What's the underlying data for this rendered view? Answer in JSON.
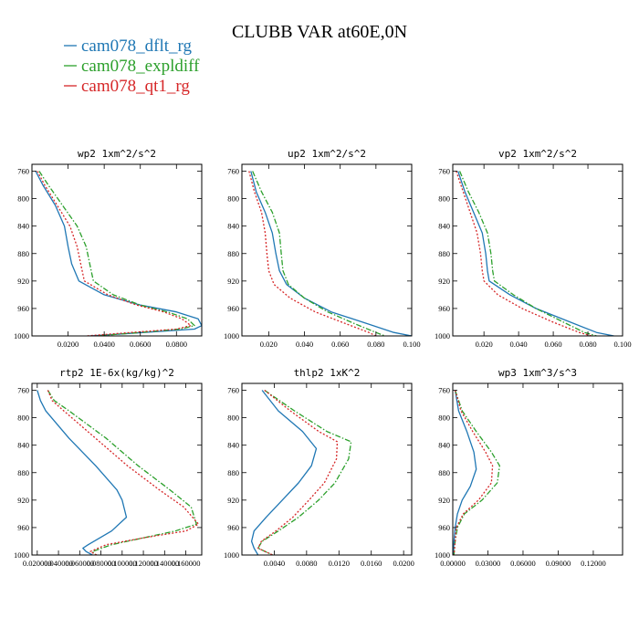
{
  "chart_data": {
    "type": "line",
    "title": "CLUBB VAR at60E,0N",
    "legend_position": "top-left",
    "series_meta": [
      {
        "name": "cam078_dflt_rg",
        "color": "#1f77b4",
        "dash": "solid"
      },
      {
        "name": "cam078_expldiff",
        "color": "#2ca02c",
        "dash": "dashdot"
      },
      {
        "name": "cam078_qt1_rg",
        "color": "#d62728",
        "dash": "dotted"
      }
    ],
    "panels": [
      {
        "title": "wp2   1xm^2/s^2",
        "xlim": [
          0,
          0.094
        ],
        "ylim": [
          1000,
          750
        ],
        "xticks": [
          0.02,
          0.04,
          0.06,
          0.08
        ],
        "xtick_labels": [
          "0.0200",
          "0.0400",
          "0.0600",
          "0.0800"
        ],
        "yticks": [
          760,
          800,
          840,
          880,
          920,
          960,
          1000
        ],
        "ytick_labels": [
          "760",
          "800",
          "840",
          "880",
          "920",
          "960",
          "1000"
        ],
        "series": [
          {
            "name": "cam078_dflt_rg",
            "x": [
              0.002,
              0.006,
              0.013,
              0.018,
              0.02,
              0.022,
              0.026,
              0.04,
              0.06,
              0.08,
              0.092,
              0.094,
              0.09,
              0.062,
              0.032
            ],
            "y": [
              760,
              780,
              810,
              840,
              870,
              895,
              920,
              940,
              955,
              965,
              975,
              985,
              990,
              995,
              1000
            ]
          },
          {
            "name": "cam078_expldiff",
            "x": [
              0.004,
              0.009,
              0.017,
              0.025,
              0.03,
              0.032,
              0.034,
              0.045,
              0.06,
              0.075,
              0.086,
              0.09,
              0.082,
              0.06,
              0.036
            ],
            "y": [
              760,
              780,
              810,
              840,
              870,
              895,
              920,
              940,
              955,
              965,
              975,
              985,
              990,
              995,
              1000
            ]
          },
          {
            "name": "cam078_qt1_rg",
            "x": [
              0.003,
              0.007,
              0.014,
              0.021,
              0.025,
              0.027,
              0.029,
              0.042,
              0.058,
              0.073,
              0.083,
              0.088,
              0.08,
              0.055,
              0.03
            ],
            "y": [
              760,
              780,
              810,
              840,
              870,
              895,
              920,
              940,
              955,
              965,
              975,
              985,
              990,
              995,
              1000
            ]
          }
        ]
      },
      {
        "title": "up2   1xm^2/s^2",
        "xlim": [
          0.005,
          0.1
        ],
        "ylim": [
          1000,
          750
        ],
        "xticks": [
          0.02,
          0.04,
          0.06,
          0.08,
          0.1
        ],
        "xtick_labels": [
          "0.020",
          "0.040",
          "0.060",
          "0.080",
          "0.100"
        ],
        "yticks": [
          760,
          800,
          840,
          880,
          920,
          960,
          1000
        ],
        "ytick_labels": [
          "760",
          "800",
          "840",
          "880",
          "920",
          "960",
          "1000"
        ],
        "series": [
          {
            "name": "cam078_dflt_rg",
            "x": [
              0.01,
              0.013,
              0.018,
              0.022,
              0.024,
              0.026,
              0.03,
              0.04,
              0.055,
              0.075,
              0.09,
              0.1
            ],
            "y": [
              760,
              790,
              820,
              850,
              880,
              905,
              925,
              945,
              965,
              982,
              995,
              1000
            ]
          },
          {
            "name": "cam078_expldiff",
            "x": [
              0.011,
              0.016,
              0.022,
              0.026,
              0.027,
              0.028,
              0.031,
              0.04,
              0.053,
              0.068,
              0.08,
              0.085
            ],
            "y": [
              760,
              790,
              820,
              850,
              880,
              905,
              925,
              945,
              965,
              982,
              995,
              1000
            ]
          },
          {
            "name": "cam078_qt1_rg",
            "x": [
              0.009,
              0.012,
              0.016,
              0.018,
              0.019,
              0.02,
              0.023,
              0.032,
              0.046,
              0.063,
              0.076,
              0.08
            ],
            "y": [
              760,
              790,
              820,
              850,
              880,
              905,
              925,
              945,
              965,
              982,
              995,
              1000
            ]
          }
        ]
      },
      {
        "title": "vp2   1xm^2/s^2",
        "xlim": [
          0.002,
          0.1
        ],
        "ylim": [
          1000,
          750
        ],
        "xticks": [
          0.02,
          0.04,
          0.06,
          0.08,
          0.1
        ],
        "xtick_labels": [
          "0.020",
          "0.040",
          "0.060",
          "0.080",
          "0.100"
        ],
        "yticks": [
          760,
          800,
          840,
          880,
          920,
          960,
          1000
        ],
        "ytick_labels": [
          "760",
          "800",
          "840",
          "880",
          "920",
          "960",
          "1000"
        ],
        "series": [
          {
            "name": "cam078_dflt_rg",
            "x": [
              0.005,
              0.009,
              0.014,
              0.019,
              0.021,
              0.022,
              0.023,
              0.035,
              0.05,
              0.07,
              0.085,
              0.095
            ],
            "y": [
              760,
              790,
              820,
              850,
              880,
              905,
              920,
              940,
              960,
              980,
              995,
              1000
            ]
          },
          {
            "name": "cam078_expldiff",
            "x": [
              0.006,
              0.011,
              0.017,
              0.022,
              0.024,
              0.025,
              0.026,
              0.037,
              0.05,
              0.066,
              0.078,
              0.085
            ],
            "y": [
              760,
              790,
              820,
              850,
              880,
              905,
              920,
              940,
              960,
              980,
              995,
              1000
            ]
          },
          {
            "name": "cam078_qt1_rg",
            "x": [
              0.004,
              0.008,
              0.012,
              0.016,
              0.018,
              0.019,
              0.02,
              0.028,
              0.042,
              0.06,
              0.075,
              0.082
            ],
            "y": [
              760,
              790,
              820,
              850,
              880,
              905,
              920,
              940,
              960,
              980,
              995,
              1000
            ]
          }
        ]
      },
      {
        "title": "rtp2   1E-6x(kg/kg)^2",
        "xlim": [
          0.015,
          0.175
        ],
        "ylim": [
          1000,
          750
        ],
        "xticks": [
          0.02,
          0.04,
          0.06,
          0.08,
          0.1,
          0.12,
          0.14,
          0.16
        ],
        "xtick_labels": [
          "0.020000",
          "0.040000",
          "0.060000",
          "0.080000",
          "0.100000",
          "0.120000",
          "0.140000",
          "0.160000"
        ],
        "yticks": [
          760,
          800,
          840,
          880,
          920,
          960,
          1000
        ],
        "ytick_labels": [
          "760",
          "800",
          "840",
          "880",
          "920",
          "960",
          "1000"
        ],
        "series": [
          {
            "name": "cam078_dflt_rg",
            "x": [
              0.02,
              0.023,
              0.028,
              0.05,
              0.075,
              0.095,
              0.1,
              0.104,
              0.09,
              0.068,
              0.063,
              0.066,
              0.072
            ],
            "y": [
              760,
              775,
              790,
              830,
              870,
              905,
              920,
              945,
              965,
              985,
              990,
              995,
              1000
            ]
          },
          {
            "name": "cam078_expldiff",
            "x": [
              0.03,
              0.036,
              0.05,
              0.085,
              0.115,
              0.145,
              0.165,
              0.17,
              0.15,
              0.12,
              0.09,
              0.072,
              0.075
            ],
            "y": [
              760,
              775,
              790,
              830,
              870,
              905,
              930,
              955,
              965,
              975,
              985,
              995,
              1000
            ]
          },
          {
            "name": "cam078_qt1_rg",
            "x": [
              0.03,
              0.034,
              0.045,
              0.075,
              0.105,
              0.135,
              0.158,
              0.172,
              0.16,
              0.12,
              0.085,
              0.07,
              0.076
            ],
            "y": [
              760,
              775,
              790,
              830,
              870,
              905,
              930,
              955,
              965,
              975,
              985,
              995,
              1000
            ]
          }
        ]
      },
      {
        "title": "thlp2   1xK^2",
        "xlim": [
          0,
          0.021
        ],
        "ylim": [
          1000,
          750
        ],
        "xticks": [
          0.004,
          0.008,
          0.012,
          0.016,
          0.02
        ],
        "xtick_labels": [
          "0.0040",
          "0.0080",
          "0.0120",
          "0.0160",
          "0.0200"
        ],
        "yticks": [
          760,
          800,
          840,
          880,
          920,
          960,
          1000
        ],
        "ytick_labels": [
          "760",
          "800",
          "840",
          "880",
          "920",
          "960",
          "1000"
        ],
        "series": [
          {
            "name": "cam078_dflt_rg",
            "x": [
              0.0025,
              0.0045,
              0.0075,
              0.0092,
              0.0086,
              0.007,
              0.005,
              0.003,
              0.0015,
              0.0012,
              0.0015,
              0.002
            ],
            "y": [
              760,
              790,
              820,
              845,
              870,
              895,
              920,
              945,
              965,
              980,
              990,
              1000
            ]
          },
          {
            "name": "cam078_expldiff",
            "x": [
              0.0028,
              0.0065,
              0.0105,
              0.0135,
              0.0132,
              0.0115,
              0.0095,
              0.007,
              0.0045,
              0.0025,
              0.002,
              0.0038
            ],
            "y": [
              760,
              790,
              820,
              835,
              860,
              895,
              920,
              945,
              965,
              980,
              990,
              1000
            ]
          },
          {
            "name": "cam078_qt1_rg",
            "x": [
              0.0028,
              0.006,
              0.0095,
              0.0118,
              0.0117,
              0.0102,
              0.0083,
              0.0063,
              0.0042,
              0.0024,
              0.002,
              0.0038
            ],
            "y": [
              760,
              790,
              820,
              835,
              860,
              895,
              920,
              945,
              965,
              980,
              990,
              1000
            ]
          }
        ]
      },
      {
        "title": "wp3   1xm^3/s^3",
        "xlim": [
          0,
          0.145
        ],
        "ylim": [
          1000,
          750
        ],
        "xticks": [
          0,
          0.03,
          0.06,
          0.09,
          0.12
        ],
        "xtick_labels": [
          "0.00000",
          "0.03000",
          "0.06000",
          "0.09000",
          "0.12000"
        ],
        "yticks": [
          760,
          800,
          840,
          880,
          920,
          960,
          1000
        ],
        "ytick_labels": [
          "760",
          "800",
          "840",
          "880",
          "920",
          "960",
          "1000"
        ],
        "series": [
          {
            "name": "cam078_dflt_rg",
            "x": [
              0.002,
              0.005,
              0.012,
              0.018,
              0.02,
              0.015,
              0.008,
              0.004,
              0.002,
              0.001,
              0.0005
            ],
            "y": [
              760,
              790,
              820,
              850,
              875,
              900,
              920,
              940,
              960,
              980,
              1000
            ]
          },
          {
            "name": "cam078_expldiff",
            "x": [
              0.002,
              0.008,
              0.02,
              0.033,
              0.04,
              0.038,
              0.025,
              0.01,
              0.004,
              0.002,
              0.001
            ],
            "y": [
              760,
              790,
              820,
              850,
              870,
              895,
              920,
              940,
              960,
              980,
              1000
            ]
          },
          {
            "name": "cam078_qt1_rg",
            "x": [
              0.002,
              0.007,
              0.017,
              0.028,
              0.034,
              0.033,
              0.022,
              0.009,
              0.003,
              0.002,
              0.001
            ],
            "y": [
              760,
              790,
              820,
              850,
              870,
              895,
              920,
              940,
              960,
              980,
              1000
            ]
          }
        ]
      }
    ]
  }
}
